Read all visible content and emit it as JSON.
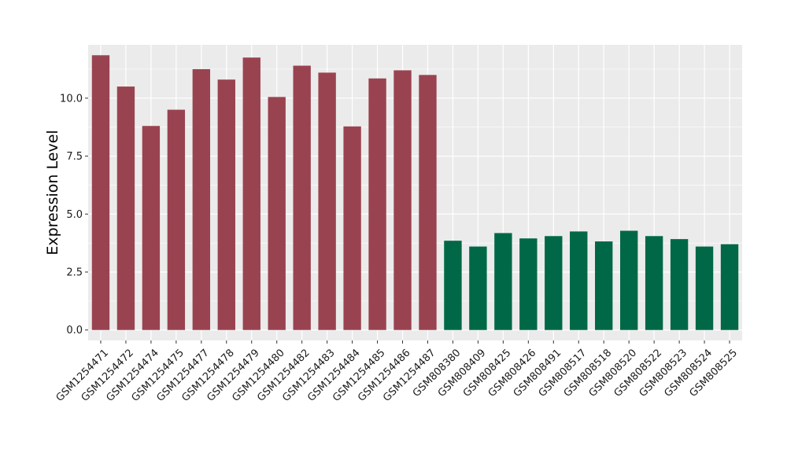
{
  "chart_data": {
    "type": "bar",
    "title": "",
    "xlabel": "",
    "ylabel": "Expression Level",
    "ylim": [
      -0.45,
      12.3
    ],
    "yticks": [
      0.0,
      2.5,
      5.0,
      7.5,
      10.0
    ],
    "ytick_labels": [
      "0.0",
      "2.5",
      "5.0",
      "7.5",
      "10.0"
    ],
    "grid": true,
    "legend": "none",
    "panel_background": "#ebebeb",
    "grid_color": "#ffffff",
    "categories": [
      "GSM1254471",
      "GSM1254472",
      "GSM1254474",
      "GSM1254475",
      "GSM1254477",
      "GSM1254478",
      "GSM1254479",
      "GSM1254480",
      "GSM1254482",
      "GSM1254483",
      "GSM1254484",
      "GSM1254485",
      "GSM1254486",
      "GSM1254487",
      "GSM808380",
      "GSM808409",
      "GSM808425",
      "GSM808426",
      "GSM808491",
      "GSM808517",
      "GSM808518",
      "GSM808520",
      "GSM808522",
      "GSM808523",
      "GSM808524",
      "GSM808525"
    ],
    "values": [
      11.85,
      10.5,
      8.8,
      9.5,
      11.25,
      10.8,
      11.75,
      10.05,
      11.4,
      11.1,
      8.78,
      10.85,
      11.2,
      11.0,
      3.85,
      3.6,
      4.18,
      3.95,
      4.05,
      4.25,
      3.82,
      4.28,
      4.05,
      3.92,
      3.6,
      3.7
    ],
    "bar_colors": [
      "#9a4350",
      "#9a4350",
      "#9a4350",
      "#9a4350",
      "#9a4350",
      "#9a4350",
      "#9a4350",
      "#9a4350",
      "#9a4350",
      "#9a4350",
      "#9a4350",
      "#9a4350",
      "#9a4350",
      "#9a4350",
      "#006846",
      "#006846",
      "#006846",
      "#006846",
      "#006846",
      "#006846",
      "#006846",
      "#006846",
      "#006846",
      "#006846",
      "#006846",
      "#006846"
    ]
  }
}
